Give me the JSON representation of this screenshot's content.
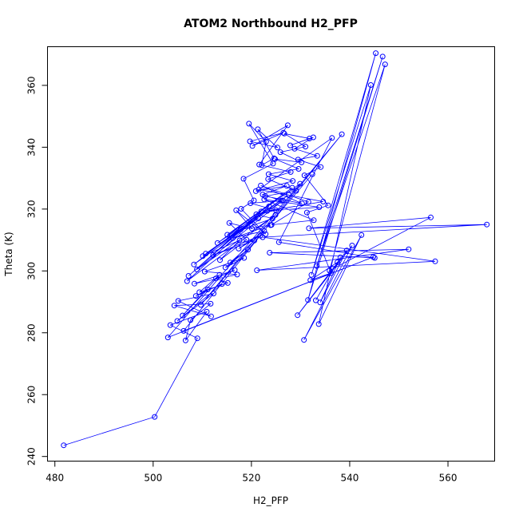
{
  "chart_data": {
    "type": "scatter",
    "title": "ATOM2 Northbound H2_PFP",
    "xlabel": "H2_PFP",
    "ylabel": "Theta (K)",
    "xlim": [
      478.5,
      569.5
    ],
    "ylim": [
      238.5,
      372.5
    ],
    "xticks": [
      480,
      500,
      520,
      540,
      560
    ],
    "yticks": [
      240,
      260,
      280,
      300,
      320,
      340,
      360
    ],
    "grid": false,
    "legend": "none",
    "line_color": "#0000ff",
    "marker": "open-circle",
    "series": [
      {
        "x": [
          481.8,
          500.3,
          509.0,
          503.5,
          510.9,
          506.6,
          507.6,
          511.7,
          504.3,
          511.8,
          505.1,
          512.3,
          504.9,
          514.0,
          508.7,
          511.1,
          506.0,
          513.5,
          509.4,
          515.2,
          512.8,
          516.6,
          508.4,
          517.1,
          510.5,
          518.5,
          514.7,
          519.3,
          515.7,
          520.6,
          512.2,
          521.8,
          517.4,
          522.6,
          516.2,
          523.9,
          517.8,
          524.3,
          521.0,
          525.0,
          519.8,
          526.1,
          522.3,
          527.2,
          520.9,
          528.4,
          523.5,
          529.6,
          524.8,
          530.2,
          525.9,
          531.0,
          526.7,
          531.8,
          527.9,
          532.6,
          528.8,
          533.4,
          529.5,
          534.1,
          530.8,
          535.6,
          531.3,
          536.2,
          532.0,
          537.5,
          533.1,
          538.1,
          534.0,
          539.4,
          529.4,
          540.5,
          530.7,
          542.4,
          533.7,
          544.3,
          532.2,
          545.3,
          531.5,
          546.7,
          533.3,
          547.2,
          535.9,
          556.5,
          531.7,
          567.9,
          522.3,
          557.4,
          521.1,
          552.0,
          523.7,
          545.1,
          525.6,
          536.4,
          521.5,
          534.6,
          523.2,
          533.8,
          522.6,
          532.7,
          524.1,
          531.6,
          521.9,
          530.3,
          522.8,
          529.1,
          523.4,
          528.0,
          521.6,
          527.4,
          520.2,
          526.5,
          519.7,
          525.3,
          521.3,
          524.6,
          522.1,
          523.0,
          519.5,
          524.4,
          518.4,
          520.5,
          517.9,
          522.9,
          516.9,
          520.1,
          515.5,
          519.0,
          513.6,
          517.6,
          510.1,
          521.4,
          508.3,
          522.0,
          507.2,
          523.6,
          506.9,
          524.9,
          508.9,
          526.4,
          510.7,
          527.6,
          513.1,
          528.3,
          515.1,
          529.9,
          503.0,
          544.8,
          506.2,
          538.4,
          509.7,
          532.4
        ],
        "y": [
          243.6,
          252.8,
          278.2,
          282.5,
          286.8,
          277.5,
          284.1,
          289.4,
          288.8,
          285.3,
          290.3,
          292.7,
          283.8,
          295.8,
          291.9,
          294.0,
          285.6,
          298.7,
          293.1,
          296.1,
          297.6,
          300.3,
          295.9,
          298.8,
          299.8,
          304.2,
          301.1,
          306.9,
          302.7,
          309.8,
          305.1,
          311.4,
          307.2,
          312.9,
          310.6,
          314.8,
          313.4,
          316.9,
          318.3,
          319.6,
          321.9,
          322.7,
          324.7,
          327.5,
          325.8,
          329.1,
          331.3,
          333.0,
          336.2,
          335.1,
          338.4,
          340.2,
          344.4,
          342.8,
          340.6,
          343.2,
          339.5,
          337.2,
          336.0,
          333.6,
          330.9,
          321.2,
          318.9,
          299.3,
          297.0,
          302.8,
          290.5,
          304.4,
          289.8,
          306.6,
          285.7,
          308.2,
          277.7,
          311.6,
          282.8,
          360.1,
          298.7,
          370.4,
          290.6,
          369.3,
          301.6,
          366.8,
          300.1,
          317.3,
          313.8,
          315.0,
          310.9,
          303.1,
          300.2,
          307.0,
          305.9,
          304.2,
          309.3,
          343.0,
          326.3,
          322.4,
          319.4,
          320.6,
          323.1,
          316.4,
          314.9,
          322.3,
          327.6,
          321.8,
          324.2,
          325.9,
          329.7,
          332.0,
          334.4,
          347.1,
          340.4,
          344.7,
          341.9,
          339.9,
          345.8,
          336.4,
          334.2,
          341.8,
          347.6,
          334.7,
          329.8,
          322.8,
          320.1,
          311.9,
          319.6,
          313.7,
          315.5,
          310.1,
          303.5,
          309.9,
          304.8,
          317.0,
          302.1,
          319.2,
          298.4,
          320.9,
          296.7,
          318.1,
          300.5,
          322.8,
          305.6,
          324.6,
          309.0,
          326.9,
          311.7,
          328.2,
          278.5,
          304.5,
          280.6,
          344.2,
          289.0,
          331.3
        ]
      }
    ]
  }
}
